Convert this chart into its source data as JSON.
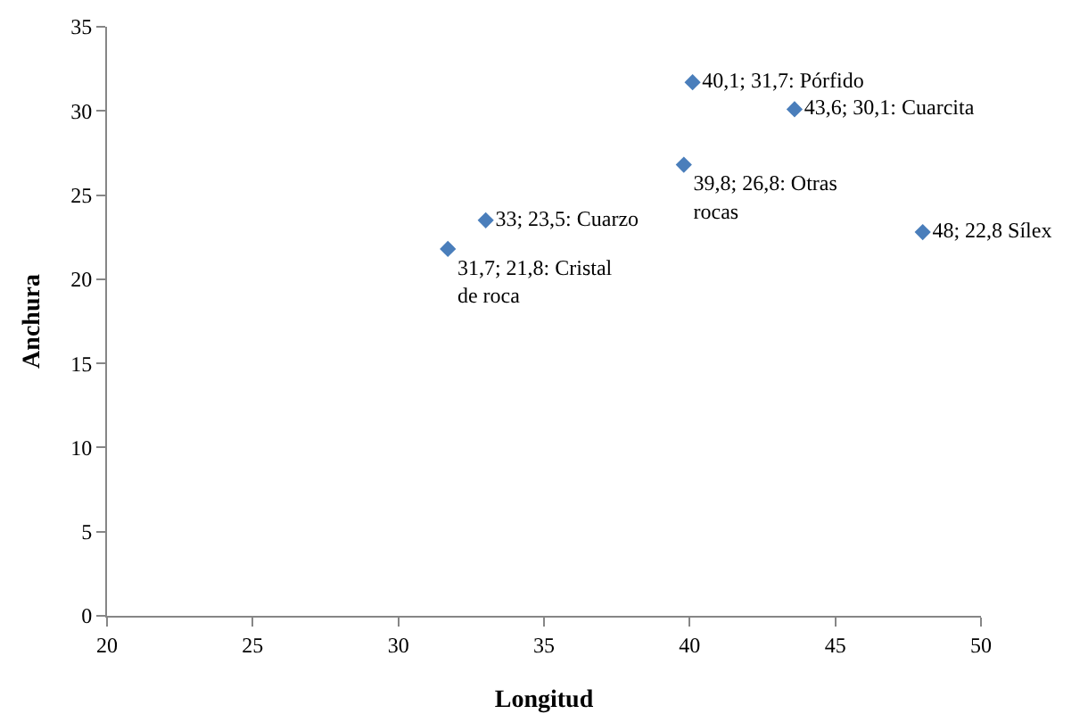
{
  "chart_data": {
    "type": "scatter",
    "xlabel": "Longitud",
    "ylabel": "Anchura",
    "x": [
      31.7,
      33,
      39.8,
      40.1,
      43.6,
      48
    ],
    "values": [
      21.8,
      23.5,
      26.8,
      31.7,
      30.1,
      22.8
    ],
    "value_labels": [
      "31,7; 21,8: Cristal de roca",
      "33; 23,5: Cuarzo",
      "39,8; 26,8: Otras rocas",
      "40,1; 31,7: Pórfido",
      "43,6; 30,1: Cuarcita",
      "48; 22,8 Sílex"
    ],
    "color": "#4a7ebb",
    "marker": "diamond",
    "grid": false,
    "xlim": [
      20,
      50
    ],
    "xticks": [
      20,
      25,
      30,
      35,
      40,
      45,
      50
    ],
    "ylim": [
      0,
      35
    ],
    "yticks": [
      0,
      5,
      10,
      15,
      20,
      25,
      30,
      35
    ]
  }
}
